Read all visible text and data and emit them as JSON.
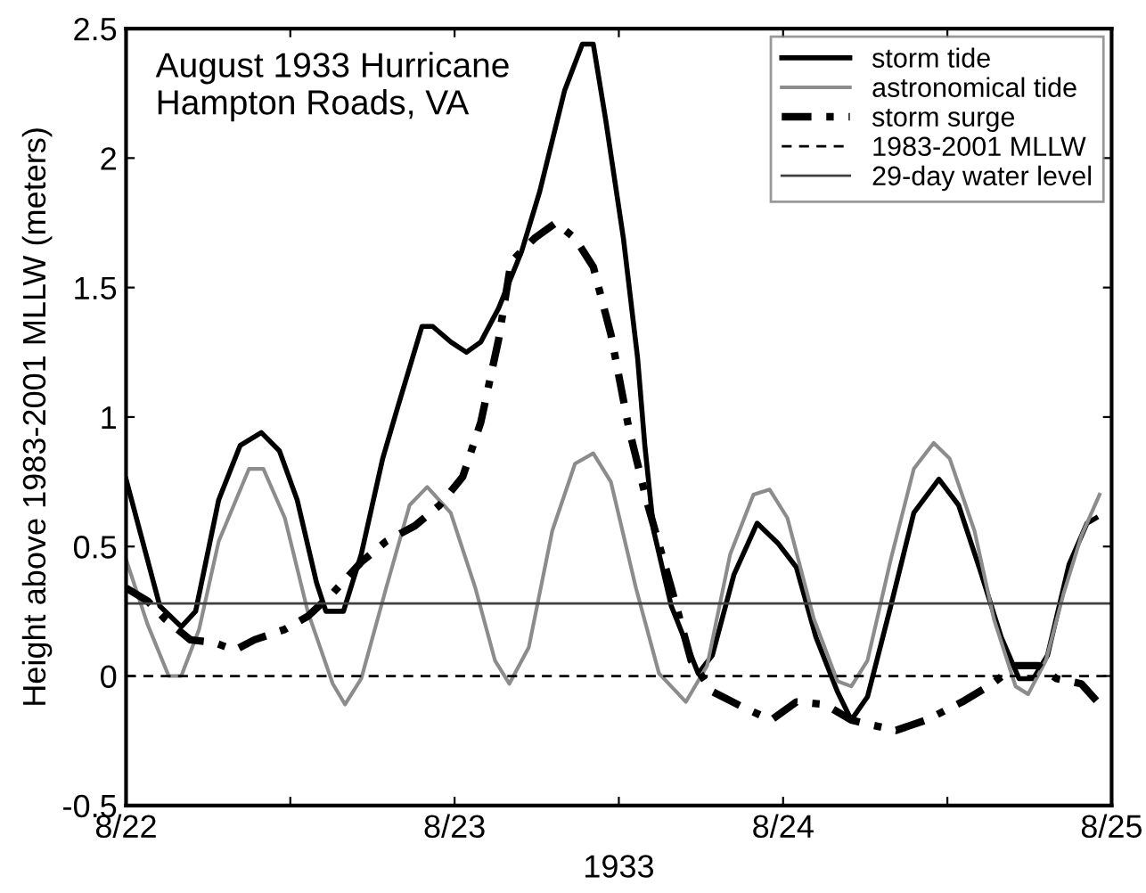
{
  "chart_data": {
    "type": "line",
    "xlabel": "1933",
    "ylabel": "Height above 1983-2001 MLLW (meters)",
    "annotations": [
      "August 1933 Hurricane\nHampton Roads, VA"
    ],
    "xlim": [
      "1933-08-22",
      "1933-08-25"
    ],
    "ylim": [
      -0.5,
      2.5
    ],
    "xticks": [
      {
        "value": "1933-08-22",
        "label": "8/22"
      },
      {
        "value": "1933-08-22T12:00",
        "label": null
      },
      {
        "value": "1933-08-23",
        "label": "8/23"
      },
      {
        "value": "1933-08-23T12:00",
        "label": null
      },
      {
        "value": "1933-08-24",
        "label": "8/24"
      },
      {
        "value": "1933-08-24T12:00",
        "label": null
      },
      {
        "value": "1933-08-25",
        "label": "8/25"
      }
    ],
    "yticks": [
      -0.5,
      0,
      0.5,
      1,
      1.5,
      2,
      2.5
    ],
    "grid": false,
    "legend": "top right",
    "series": [
      {
        "name": "storm tide",
        "color": "#000000",
        "line_style": "solid",
        "x": [
          "1933-08-22T00:00",
          "1933-08-22T02:28",
          "1933-08-22T04:02",
          "1933-08-22T05:05",
          "1933-08-22T06:46",
          "1933-08-22T08:20",
          "1933-08-22T09:53",
          "1933-08-22T11:12",
          "1933-08-22T12:30",
          "1933-08-22T13:55",
          "1933-08-22T14:36",
          "1933-08-22T15:53",
          "1933-08-22T17:11",
          "1933-08-22T18:45",
          "1933-08-22T19:48",
          "1933-08-22T21:37",
          "1933-08-22T22:24",
          "1933-08-22T23:43",
          "1933-08-23T00:52",
          "1933-08-23T01:55",
          "1933-08-23T03:13",
          "1933-08-23T04:54",
          "1933-08-23T06:13",
          "1933-08-23T08:02",
          "1933-08-23T09:20",
          "1933-08-23T10:08",
          "1933-08-23T11:02",
          "1933-08-23T12:20",
          "1933-08-23T13:22",
          "1933-08-23T13:54",
          "1933-08-23T14:33",
          "1933-08-23T15:50",
          "1933-08-23T17:48",
          "1933-08-23T18:50",
          "1933-08-23T20:24",
          "1933-08-23T22:06",
          "1933-08-23T23:40",
          "1933-08-24T00:58",
          "1933-08-24T02:24",
          "1933-08-24T03:58",
          "1933-08-24T04:59",
          "1933-08-24T06:10",
          "1933-08-24T07:52",
          "1933-08-24T09:33",
          "1933-08-24T11:23",
          "1933-08-24T12:49",
          "1933-08-24T14:23",
          "1933-08-24T15:56",
          "1933-08-24T17:14",
          "1933-08-24T18:17",
          "1933-08-24T19:19",
          "1933-08-24T20:53",
          "1933-08-24T22:12",
          "1933-08-24T22:51"
        ],
        "values": [
          0.76,
          0.27,
          0.19,
          0.25,
          0.68,
          0.89,
          0.94,
          0.87,
          0.68,
          0.36,
          0.25,
          0.25,
          0.47,
          0.84,
          1.03,
          1.35,
          1.35,
          1.29,
          1.25,
          1.29,
          1.42,
          1.64,
          1.87,
          2.26,
          2.44,
          2.44,
          2.15,
          1.69,
          1.23,
          0.89,
          0.56,
          0.27,
          0.01,
          0.08,
          0.39,
          0.59,
          0.51,
          0.42,
          0.15,
          -0.06,
          -0.17,
          -0.08,
          0.27,
          0.63,
          0.76,
          0.66,
          0.41,
          0.15,
          -0.01,
          -0.01,
          0.08,
          0.43,
          0.59,
          0.61
        ]
      },
      {
        "name": "astronomical tide",
        "color": "#8c8c8c",
        "line_style": "solid",
        "x": [
          "1933-08-22T00:00",
          "1933-08-22T01:34",
          "1933-08-22T03:07",
          "1933-08-22T04:02",
          "1933-08-22T05:20",
          "1933-08-22T06:46",
          "1933-08-22T08:59",
          "1933-08-22T10:02",
          "1933-08-22T11:36",
          "1933-08-22T13:16",
          "1933-08-22T15:06",
          "1933-08-22T16:00",
          "1933-08-22T17:11",
          "1933-08-22T19:00",
          "1933-08-22T20:43",
          "1933-08-22T22:00",
          "1933-08-22T23:43",
          "1933-08-23T01:31",
          "1933-08-23T02:57",
          "1933-08-23T04:00",
          "1933-08-23T05:25",
          "1933-08-23T07:08",
          "1933-08-23T08:48",
          "1933-08-23T10:08",
          "1933-08-23T11:25",
          "1933-08-23T13:15",
          "1933-08-23T14:56",
          "1933-08-23T16:54",
          "1933-08-23T18:27",
          "1933-08-23T20:08",
          "1933-08-23T21:50",
          "1933-08-23T23:01",
          "1933-08-24T00:19",
          "1933-08-24T02:15",
          "1933-08-24T03:58",
          "1933-08-24T04:59",
          "1933-08-24T06:10",
          "1933-08-24T07:52",
          "1933-08-24T09:33",
          "1933-08-24T11:00",
          "1933-08-24T12:10",
          "1933-08-24T13:59",
          "1933-08-24T15:24",
          "1933-08-24T16:59",
          "1933-08-24T17:54",
          "1933-08-24T19:12",
          "1933-08-24T20:30",
          "1933-08-24T21:47",
          "1933-08-24T23:07"
        ],
        "values": [
          0.45,
          0.2,
          0.0,
          0.0,
          0.18,
          0.52,
          0.8,
          0.8,
          0.61,
          0.25,
          -0.03,
          -0.11,
          -0.01,
          0.34,
          0.66,
          0.73,
          0.63,
          0.34,
          0.06,
          -0.03,
          0.11,
          0.56,
          0.82,
          0.86,
          0.75,
          0.34,
          0.01,
          -0.1,
          0.04,
          0.47,
          0.7,
          0.72,
          0.61,
          0.22,
          -0.02,
          -0.04,
          0.06,
          0.45,
          0.8,
          0.9,
          0.84,
          0.56,
          0.22,
          -0.04,
          -0.07,
          0.06,
          0.32,
          0.54,
          0.7
        ]
      },
      {
        "name": "storm surge",
        "color": "#000000",
        "line_style": "dashdot",
        "x": [
          "1933-08-22T00:00",
          "1933-08-22T01:34",
          "1933-08-22T02:51",
          "1933-08-22T04:41",
          "1933-08-22T06:23",
          "1933-08-22T07:57",
          "1933-08-22T09:23",
          "1933-08-22T11:36",
          "1933-08-22T13:16",
          "1933-08-22T15:06",
          "1933-08-22T17:11",
          "1933-08-22T19:00",
          "1933-08-22T21:06",
          "1933-08-22T22:55",
          "1933-08-23T00:36",
          "1933-08-23T01:55",
          "1933-08-23T03:13",
          "1933-08-23T04:08",
          "1933-08-23T05:50",
          "1933-08-23T07:24",
          "1933-08-23T08:48",
          "1933-08-23T10:08",
          "1933-08-23T11:25",
          "1933-08-23T12:43",
          "1933-08-23T14:01",
          "1933-08-23T15:50",
          "1933-08-23T17:17",
          "1933-08-23T18:50",
          "1933-08-23T21:03",
          "1933-08-23T23:08",
          "1933-08-24T00:58",
          "1933-08-24T03:03",
          "1933-08-24T04:59",
          "1933-08-24T06:33",
          "1933-08-24T08:15",
          "1933-08-24T10:28",
          "1933-08-24T13:05",
          "1933-08-24T15:17",
          "1933-08-24T16:59",
          "1933-08-24T18:40",
          "1933-08-24T19:58",
          "1933-08-24T21:47",
          "1933-08-24T22:58"
        ],
        "values": [
          0.34,
          0.29,
          0.22,
          0.14,
          0.13,
          0.1,
          0.14,
          0.18,
          0.23,
          0.32,
          0.44,
          0.52,
          0.58,
          0.66,
          0.77,
          0.98,
          1.3,
          1.6,
          1.69,
          1.75,
          1.69,
          1.58,
          1.32,
          0.96,
          0.68,
          0.34,
          0.06,
          -0.06,
          -0.12,
          -0.17,
          -0.1,
          -0.11,
          -0.17,
          -0.19,
          -0.21,
          -0.17,
          -0.1,
          -0.03,
          0.04,
          0.04,
          -0.01,
          -0.03,
          -0.1
        ]
      },
      {
        "name": "1983-2001 MLLW",
        "color": "#000000",
        "line_style": "dashed",
        "x": [
          "1933-08-22",
          "1933-08-25"
        ],
        "values": [
          0,
          0
        ]
      },
      {
        "name": "29-day water level",
        "color": "#404040",
        "line_style": "solid",
        "x": [
          "1933-08-22",
          "1933-08-25"
        ],
        "values": [
          0.28,
          0.28
        ]
      }
    ]
  }
}
